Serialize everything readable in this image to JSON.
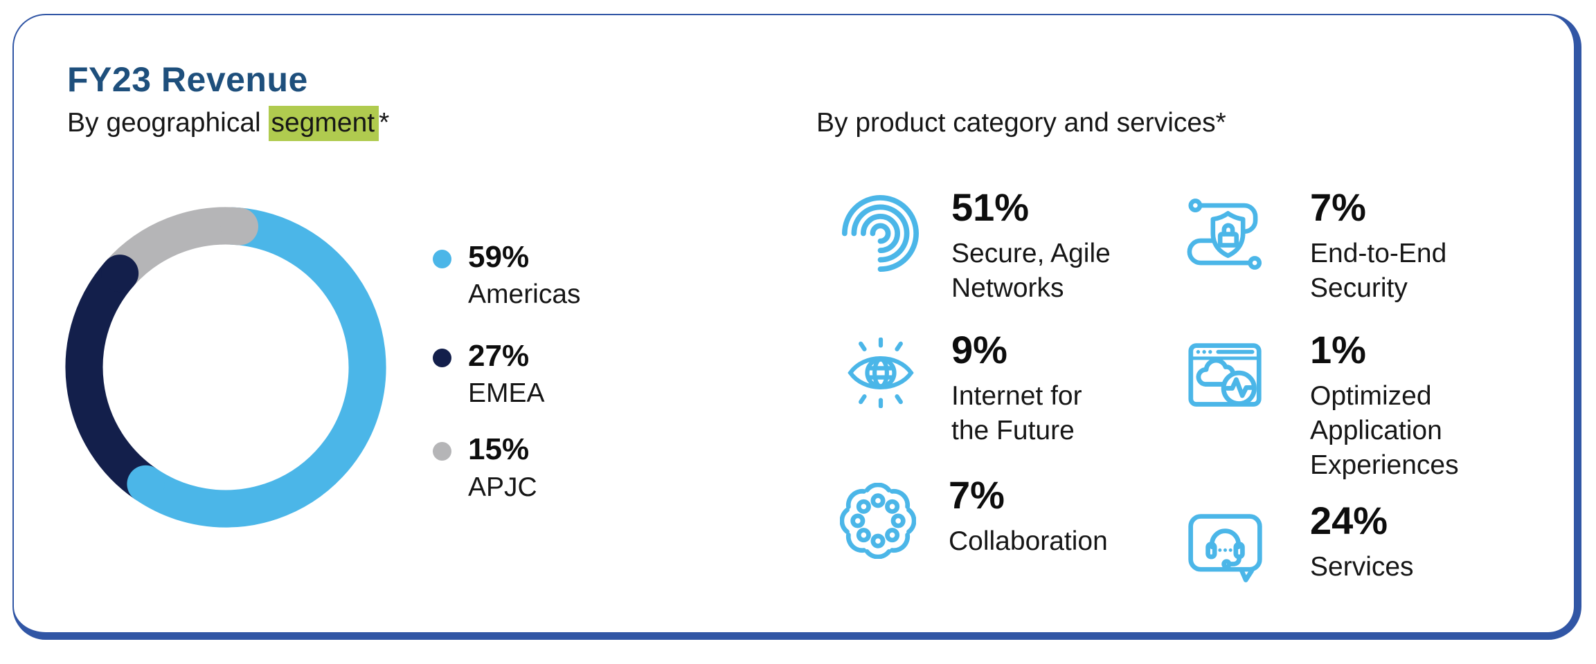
{
  "card": {
    "title": "FY23 Revenue",
    "geo": {
      "subtitle_prefix": "By geographical ",
      "subtitle_highlight": "segment",
      "subtitle_suffix": "*",
      "legend": [
        {
          "pct": "59%",
          "label": "Americas",
          "color": "#4BB6E8"
        },
        {
          "pct": "27%",
          "label": "EMEA",
          "color": "#131F4B"
        },
        {
          "pct": "15%",
          "label": "APJC",
          "color": "#B5B5B7"
        }
      ]
    },
    "products": {
      "heading": "By product category and services*",
      "items": [
        {
          "pct": "51%",
          "label": "Secure, Agile\nNetworks",
          "icon": "fingerprint-icon"
        },
        {
          "pct": "9%",
          "label": "Internet for\nthe Future",
          "icon": "internet-eye-icon"
        },
        {
          "pct": "7%",
          "label": "Collaboration",
          "icon": "collaboration-icon"
        },
        {
          "pct": "7%",
          "label": "End-to-End\nSecurity",
          "icon": "shield-lock-icon"
        },
        {
          "pct": "1%",
          "label": "Optimized\nApplication\nExperiences",
          "icon": "app-window-pulse-icon"
        },
        {
          "pct": "24%",
          "label": "Services",
          "icon": "chat-headset-icon"
        }
      ]
    }
  },
  "chart_data": [
    {
      "type": "pie",
      "donut": true,
      "title": "FY23 Revenue by geographical segment",
      "categories": [
        "Americas",
        "EMEA",
        "APJC"
      ],
      "values": [
        59,
        27,
        15
      ],
      "colors": [
        "#4BB6E8",
        "#131F4B",
        "#B5B5B7"
      ],
      "start_angle": 2,
      "legend_position": "right"
    },
    {
      "type": "table",
      "title": "FY23 Revenue by product category and services",
      "categories": [
        "Secure, Agile Networks",
        "Internet for the Future",
        "Collaboration",
        "End-to-End Security",
        "Optimized Application Experiences",
        "Services"
      ],
      "values": [
        51,
        9,
        7,
        7,
        1,
        24
      ],
      "unit": "%"
    }
  ],
  "colors": {
    "accent_blue": "#4BB6E8",
    "navy": "#131F4B",
    "gray": "#B5B5B7",
    "border_blue": "#3156A5",
    "title_blue": "#1E4F7C",
    "highlight_green": "#B0CB4F"
  }
}
